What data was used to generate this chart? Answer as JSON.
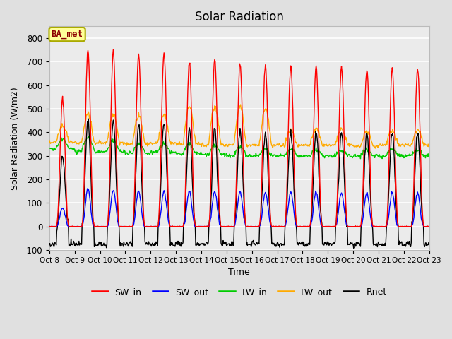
{
  "title": "Solar Radiation",
  "xlabel": "Time",
  "ylabel": "Solar Radiation (W/m2)",
  "ylim": [
    -100,
    850
  ],
  "yticks": [
    -100,
    0,
    100,
    200,
    300,
    400,
    500,
    600,
    700,
    800
  ],
  "num_days": 15,
  "colors": {
    "SW_in": "#ff0000",
    "SW_out": "#0000ff",
    "LW_in": "#00cc00",
    "LW_out": "#ffaa00",
    "Rnet": "#000000"
  },
  "background_color": "#e0e0e0",
  "plot_bg_color": "#ebebeb",
  "grid_color": "#ffffff",
  "legend_box_color": "#ffff99",
  "legend_box_edge": "#aaaa00",
  "tick_label_dates": [
    "Oct 8",
    "Oct 9",
    "Oct 10",
    "Oct 11",
    "Oct 12",
    "Oct 13",
    "Oct 14",
    "Oct 15",
    "Oct 16",
    "Oct 17",
    "Oct 18",
    "Oct 19",
    "Oct 20",
    "Oct 21",
    "Oct 22",
    "Oct 23"
  ],
  "SW_in_peaks": [
    540,
    750,
    740,
    730,
    735,
    700,
    710,
    695,
    680,
    680,
    680,
    675,
    670,
    670,
    670
  ],
  "SW_out_peaks": [
    80,
    160,
    155,
    150,
    150,
    150,
    150,
    148,
    145,
    145,
    145,
    143,
    143,
    142,
    142
  ],
  "LW_out_peaks": [
    430,
    480,
    475,
    470,
    475,
    510,
    510,
    510,
    500,
    410,
    415,
    415,
    410,
    410,
    410
  ],
  "LW_out_night": [
    360,
    355,
    355,
    350,
    355,
    350,
    345,
    345,
    345,
    345,
    345,
    345,
    340,
    345,
    345
  ],
  "LW_in_day": [
    370,
    375,
    365,
    350,
    350,
    350,
    345,
    340,
    330,
    330,
    325,
    325,
    325,
    325,
    325
  ],
  "LW_in_night": [
    330,
    320,
    320,
    310,
    315,
    310,
    305,
    300,
    300,
    300,
    300,
    300,
    300,
    300,
    300
  ],
  "Rnet_peaks": [
    300,
    450,
    440,
    430,
    435,
    415,
    420,
    410,
    400,
    400,
    405,
    400,
    400,
    400,
    400
  ],
  "Rnet_night": -75,
  "figsize": [
    6.4,
    4.8
  ],
  "dpi": 100
}
